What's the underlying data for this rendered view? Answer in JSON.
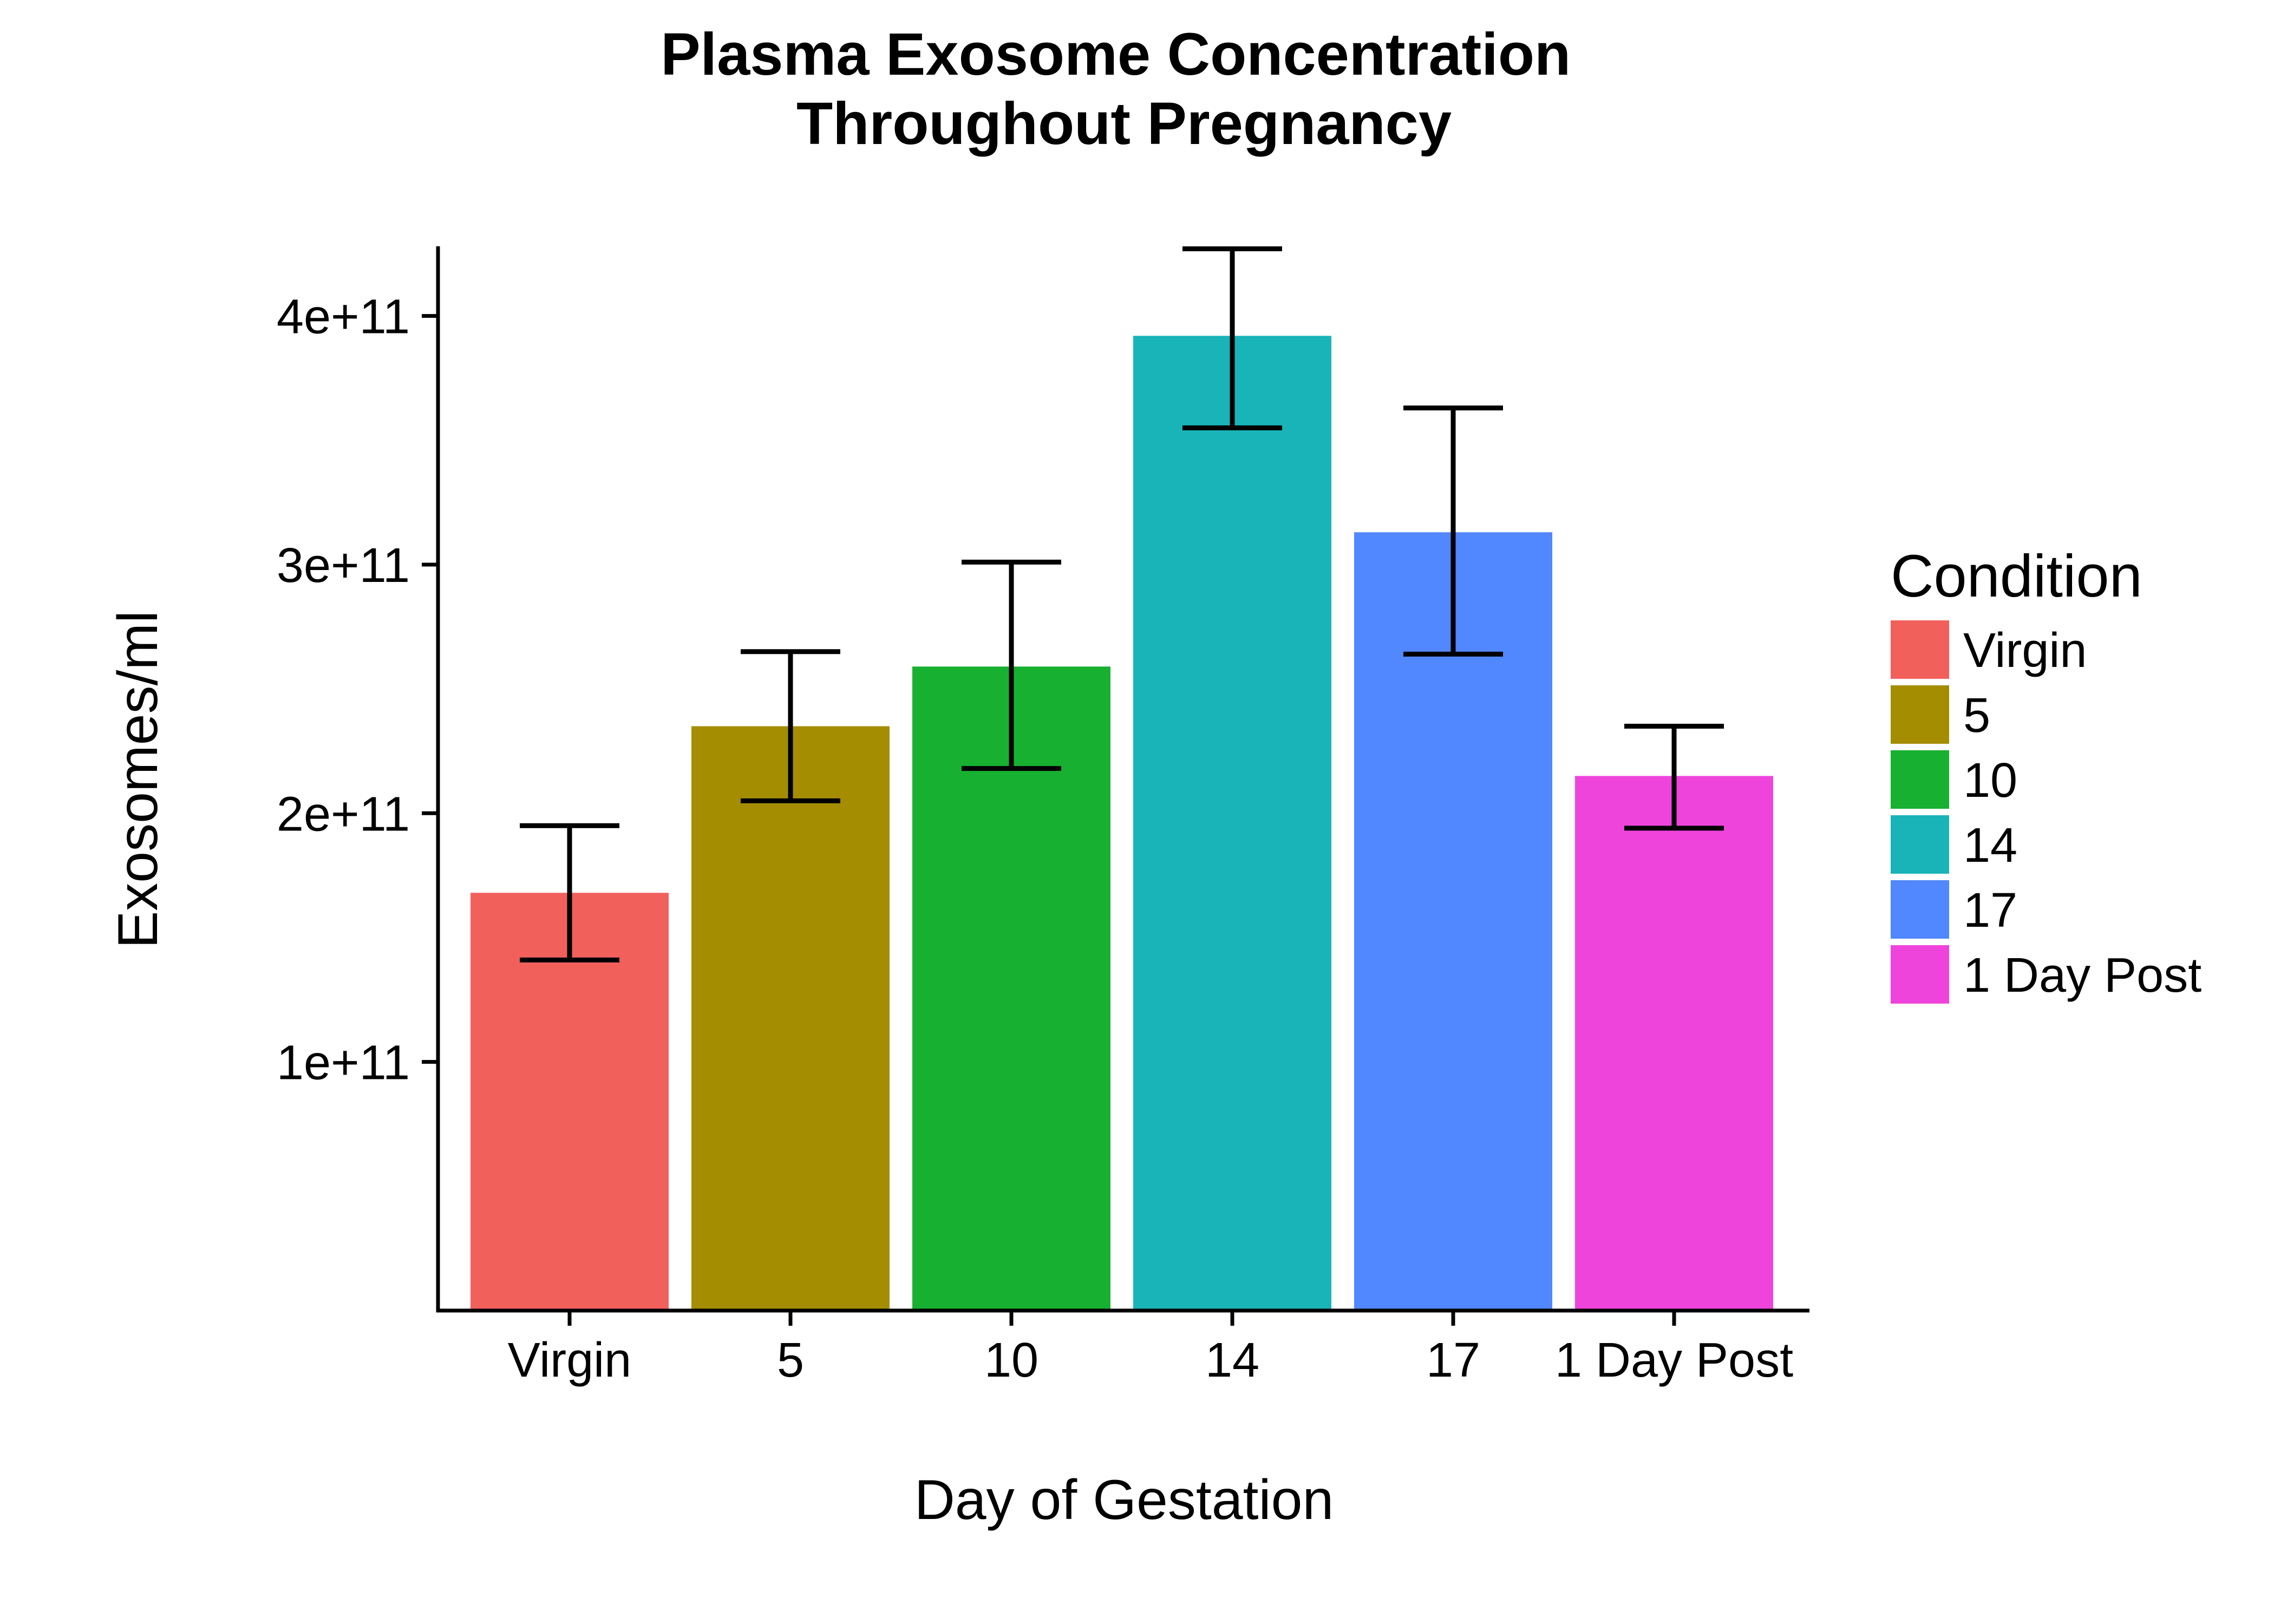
{
  "chart_data": {
    "type": "bar",
    "title": "Plasma Exosome Concentration\nThroughout Pregnancy",
    "xlabel": "Day of Gestation",
    "ylabel": "Exosomes/ml",
    "categories": [
      "Virgin",
      "5",
      "10",
      "14",
      "17",
      "1 Day Post"
    ],
    "values": [
      168000000000.0,
      235000000000.0,
      259000000000.0,
      392000000000.0,
      313000000000.0,
      215000000000.0
    ],
    "error_low": [
      141000000000.0,
      205000000000.0,
      218000000000.0,
      355000000000.0,
      264000000000.0,
      194000000000.0
    ],
    "error_high": [
      195000000000.0,
      265000000000.0,
      301000000000.0,
      427000000000.0,
      363000000000.0,
      235000000000.0
    ],
    "colors": [
      "#F2605C",
      "#A58D02",
      "#18B030",
      "#19B4B8",
      "#5187FF",
      "#EF44DC"
    ],
    "yticks": [
      100000000000.0,
      200000000000.0,
      300000000000.0,
      400000000000.0
    ],
    "ytick_labels": [
      "1e+11",
      "2e+11",
      "3e+11",
      "4e+11"
    ],
    "ylim": [
      0,
      428000000000.0
    ],
    "grid": false,
    "legend": {
      "title": "Condition",
      "placement": "right",
      "entries": [
        "Virgin",
        "5",
        "10",
        "14",
        "17",
        "1 Day Post"
      ]
    }
  }
}
